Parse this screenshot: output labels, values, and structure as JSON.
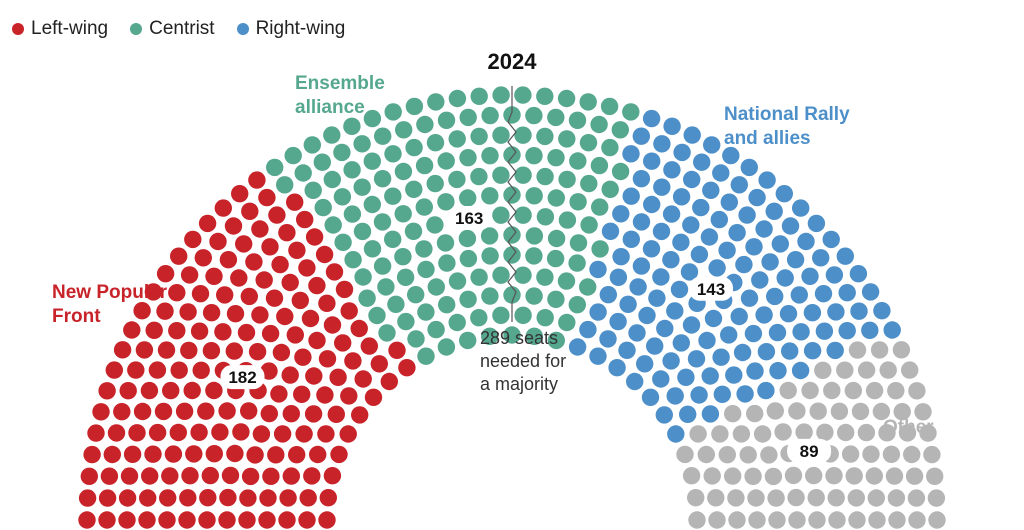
{
  "chart_data": {
    "type": "parliament",
    "title": "2024",
    "total_seats": 577,
    "legend": [
      {
        "label": "Left-wing",
        "color": "#c9232a"
      },
      {
        "label": "Centrist",
        "color": "#55a78e"
      },
      {
        "label": "Right-wing",
        "color": "#4d8fc9"
      }
    ],
    "parties": [
      {
        "name": "New Popular Front",
        "name_lines": [
          "New Popular",
          "Front"
        ],
        "seats": 182,
        "bloc": "Left-wing",
        "color": "#c9232a"
      },
      {
        "name": "Ensemble alliance",
        "name_lines": [
          "Ensemble",
          "alliance"
        ],
        "seats": 163,
        "bloc": "Centrist",
        "color": "#55a78e"
      },
      {
        "name": "National Rally and allies",
        "name_lines": [
          "National Rally",
          "and allies"
        ],
        "seats": 143,
        "bloc": "Right-wing",
        "color": "#4d8fc9"
      },
      {
        "name": "Other",
        "name_lines": [
          "Other"
        ],
        "seats": 89,
        "bloc": "",
        "color": "#b5b5b5"
      }
    ],
    "majority": {
      "seats": 289,
      "label_lines": [
        "289 seats",
        "needed for",
        "a majority"
      ]
    }
  }
}
